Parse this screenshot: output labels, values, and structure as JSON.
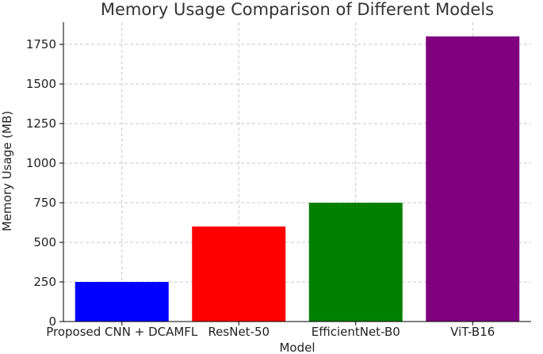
{
  "chart_data": {
    "type": "bar",
    "title": "Memory Usage Comparison of Different Models",
    "xlabel": "Model",
    "ylabel": "Memory Usage (MB)",
    "categories": [
      "Proposed CNN + DCAMFL",
      "ResNet-50",
      "EfficientNet-B0",
      "ViT-B16"
    ],
    "values": [
      250,
      600,
      750,
      1800
    ],
    "colors": [
      "#0000ff",
      "#ff0000",
      "#008000",
      "#800080"
    ],
    "ylim": [
      0,
      1890
    ],
    "yticks": [
      0,
      250,
      500,
      750,
      1000,
      1250,
      1500,
      1750
    ],
    "grid": true,
    "legend": "none"
  }
}
